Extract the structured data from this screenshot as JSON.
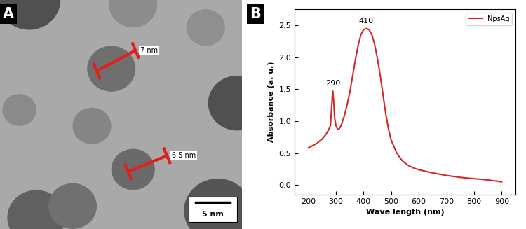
{
  "panel_labels": [
    "A",
    "B"
  ],
  "image": {
    "measurements": [
      "7 nm",
      "6.5 nm"
    ],
    "scale_bar": "5 nm"
  },
  "chart_data": {
    "type": "line",
    "xlabel": "Wave length (nm)",
    "ylabel": "Absorbance (a. u.)",
    "series": [
      {
        "name": "NpsAg",
        "color": "#d62728",
        "x": [
          200,
          230,
          250,
          265,
          275,
          280,
          284,
          288,
          291,
          295,
          300,
          305,
          310,
          315,
          320,
          330,
          340,
          350,
          360,
          370,
          380,
          390,
          400,
          410,
          420,
          430,
          440,
          450,
          460,
          470,
          480,
          490,
          500,
          520,
          540,
          560,
          580,
          600,
          650,
          700,
          750,
          800,
          850,
          900
        ],
        "values": [
          0.58,
          0.65,
          0.72,
          0.8,
          0.88,
          0.93,
          1.2,
          1.47,
          1.35,
          1.05,
          0.93,
          0.88,
          0.87,
          0.9,
          0.95,
          1.08,
          1.25,
          1.45,
          1.7,
          1.95,
          2.18,
          2.35,
          2.43,
          2.45,
          2.43,
          2.35,
          2.2,
          1.98,
          1.72,
          1.42,
          1.12,
          0.88,
          0.7,
          0.5,
          0.38,
          0.31,
          0.27,
          0.24,
          0.19,
          0.15,
          0.12,
          0.1,
          0.08,
          0.05
        ]
      }
    ],
    "xlim": [
      150,
      950
    ],
    "ylim": [
      -0.15,
      2.75
    ],
    "xticks": [
      200,
      300,
      400,
      500,
      600,
      700,
      800,
      900
    ],
    "yticks": [
      {
        "value": 0.0,
        "label": "0.0"
      },
      0.5,
      {
        "value": 1.0,
        "label": "1.0"
      },
      1.5,
      {
        "value": 2.0,
        "label": "2.0"
      },
      2.5
    ],
    "annotations": [
      {
        "text": "290",
        "x": 290,
        "y": 1.47
      },
      {
        "text": "410",
        "x": 410,
        "y": 2.45
      }
    ],
    "legend": "upper right",
    "grid": false
  }
}
